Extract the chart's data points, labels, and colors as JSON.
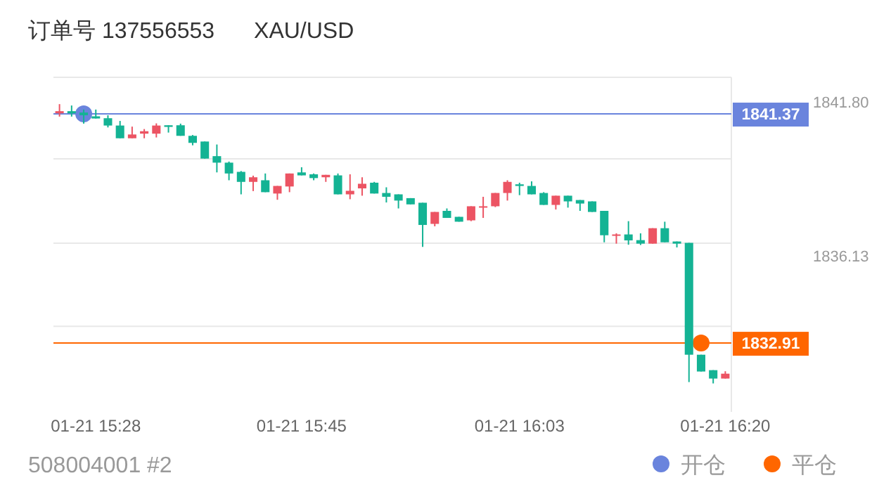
{
  "chart_data": {
    "type": "candlestick",
    "title": "订单号 137556553",
    "subtitle": "XAU/USD",
    "categories": [
      null,
      null,
      null,
      "01-21 15:28",
      null,
      null,
      null,
      null,
      null,
      null,
      null,
      null,
      null,
      null,
      null,
      null,
      null,
      null,
      null,
      null,
      "01-21 15:45",
      null,
      null,
      null,
      null,
      null,
      null,
      null,
      null,
      null,
      null,
      null,
      null,
      null,
      null,
      null,
      null,
      null,
      "01-21 16:03",
      null,
      null,
      null,
      null,
      null,
      null,
      null,
      null,
      null,
      null,
      null,
      null,
      null,
      null,
      null,
      null,
      "01-21 16:20"
    ],
    "ohlc": [
      [
        1841.39,
        1841.73,
        1841.27,
        1841.47
      ],
      [
        1841.47,
        1841.68,
        1841.27,
        1841.39
      ],
      [
        1841.42,
        1841.53,
        1841.01,
        1841.32
      ],
      [
        1841.28,
        1841.53,
        1841.2,
        1841.2
      ],
      [
        1841.21,
        1841.32,
        1840.87,
        1840.94
      ],
      [
        1840.94,
        1841.11,
        1840.47,
        1840.47
      ],
      [
        1840.47,
        1840.9,
        1840.47,
        1840.61
      ],
      [
        1840.64,
        1840.81,
        1840.47,
        1840.73
      ],
      [
        1840.64,
        1841.02,
        1840.5,
        1840.94
      ],
      [
        1840.95,
        1840.95,
        1840.68,
        1840.89
      ],
      [
        1840.95,
        1841.01,
        1840.56,
        1840.56
      ],
      [
        1840.56,
        1840.59,
        1840.21,
        1840.3
      ],
      [
        1840.35,
        1840.35,
        1839.72,
        1839.72
      ],
      [
        1839.81,
        1840.24,
        1839.21,
        1839.57
      ],
      [
        1839.57,
        1839.61,
        1838.92,
        1839.17
      ],
      [
        1839.23,
        1839.26,
        1838.4,
        1838.86
      ],
      [
        1838.86,
        1839.09,
        1838.52,
        1839.03
      ],
      [
        1838.92,
        1839.17,
        1838.48,
        1838.48
      ],
      [
        1838.43,
        1838.71,
        1838.2,
        1838.71
      ],
      [
        1838.69,
        1839.17,
        1838.48,
        1839.17
      ],
      [
        1839.21,
        1839.4,
        1839.1,
        1839.1
      ],
      [
        1839.14,
        1839.17,
        1838.92,
        1839.0
      ],
      [
        1839.03,
        1839.12,
        1838.86,
        1839.12
      ],
      [
        1839.1,
        1839.17,
        1838.4,
        1838.4
      ],
      [
        1838.4,
        1839.14,
        1838.22,
        1838.53
      ],
      [
        1838.62,
        1839.03,
        1838.35,
        1838.79
      ],
      [
        1838.83,
        1838.86,
        1838.43,
        1838.43
      ],
      [
        1838.45,
        1838.66,
        1838.1,
        1838.31
      ],
      [
        1838.4,
        1838.4,
        1837.88,
        1838.17
      ],
      [
        1838.26,
        1838.26,
        1838.03,
        1838.03
      ],
      [
        1838.09,
        1838.09,
        1836.46,
        1837.27
      ],
      [
        1837.31,
        1837.75,
        1837.22,
        1837.75
      ],
      [
        1837.79,
        1837.88,
        1837.53,
        1837.53
      ],
      [
        1837.57,
        1837.57,
        1837.39,
        1837.39
      ],
      [
        1837.44,
        1837.96,
        1837.41,
        1837.96
      ],
      [
        1837.93,
        1838.31,
        1837.53,
        1837.96
      ],
      [
        1837.96,
        1838.45,
        1837.93,
        1838.45
      ],
      [
        1838.45,
        1838.92,
        1838.17,
        1838.86
      ],
      [
        1838.77,
        1838.83,
        1838.37,
        1838.71
      ],
      [
        1838.71,
        1838.88,
        1838.4,
        1838.4
      ],
      [
        1838.45,
        1838.48,
        1838.01,
        1838.01
      ],
      [
        1838.01,
        1838.35,
        1837.84,
        1838.35
      ],
      [
        1838.35,
        1838.35,
        1837.91,
        1838.14
      ],
      [
        1838.19,
        1838.19,
        1837.79,
        1838.06
      ],
      [
        1838.14,
        1838.14,
        1837.75,
        1837.75
      ],
      [
        1837.79,
        1837.79,
        1836.63,
        1836.89
      ],
      [
        1836.89,
        1836.96,
        1836.58,
        1836.92
      ],
      [
        1836.92,
        1837.41,
        1836.54,
        1836.7
      ],
      [
        1836.71,
        1836.96,
        1836.53,
        1836.58
      ],
      [
        1836.58,
        1837.15,
        1836.58,
        1837.15
      ],
      [
        1837.15,
        1837.39,
        1836.63,
        1836.63
      ],
      [
        1836.66,
        1836.66,
        1836.44,
        1836.58
      ],
      [
        1836.61,
        1836.61,
        1831.47,
        1832.48
      ],
      [
        1832.48,
        1832.48,
        1831.86,
        1831.86
      ],
      [
        1831.91,
        1831.91,
        1831.42,
        1831.6
      ],
      [
        1831.6,
        1831.87,
        1831.6,
        1831.78
      ]
    ],
    "series": [
      {
        "type": "scatter",
        "name": "开仓",
        "color": "#6a84dd",
        "values": [
          null,
          null,
          1841.37,
          null,
          null,
          null,
          null,
          null,
          null,
          null,
          null,
          null,
          null,
          null,
          null,
          null,
          null,
          null,
          null,
          null,
          null,
          null,
          null,
          null,
          null,
          null,
          null,
          null,
          null,
          null,
          null,
          null,
          null,
          null,
          null,
          null,
          null,
          null,
          null,
          null,
          null,
          null,
          null,
          null,
          null,
          null,
          null,
          null,
          null,
          null,
          null,
          null,
          null,
          null,
          null,
          null
        ]
      },
      {
        "type": "scatter",
        "name": "平仓",
        "color": "#ff6600",
        "values": [
          null,
          null,
          null,
          null,
          null,
          null,
          null,
          null,
          null,
          null,
          null,
          null,
          null,
          null,
          null,
          null,
          null,
          null,
          null,
          null,
          null,
          null,
          null,
          null,
          null,
          null,
          null,
          null,
          null,
          null,
          null,
          null,
          null,
          null,
          null,
          null,
          null,
          null,
          null,
          null,
          null,
          null,
          null,
          null,
          null,
          null,
          null,
          null,
          null,
          null,
          null,
          null,
          null,
          1832.91,
          null,
          null
        ]
      }
    ],
    "ylim": [
      1830.37,
      1842.72
    ],
    "yticks": [
      {
        "value": 1841.8,
        "label": "1841.80"
      },
      {
        "value": 1839.71,
        "label": null
      },
      {
        "value": 1836.6,
        "label": null
      },
      {
        "value": 1836.13,
        "label": "1836.13"
      },
      {
        "value": 1833.53,
        "label": null
      }
    ],
    "ref_lines": [
      {
        "axis": "y",
        "value": 1841.37,
        "label": "1841.37",
        "color": "#6a84dd"
      },
      {
        "axis": "y",
        "value": 1832.91,
        "label": "1832.91",
        "color": "#ff6600"
      }
    ],
    "annotations": [
      "508004001 #2"
    ],
    "grid": "y",
    "legend": "bottom right",
    "marker": "circle"
  }
}
